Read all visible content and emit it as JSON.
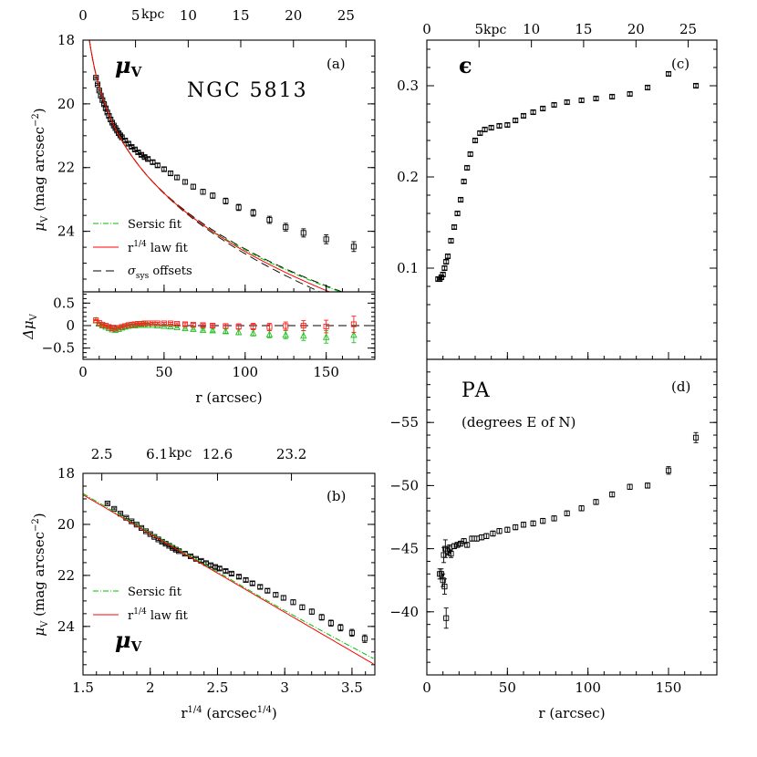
{
  "figure": {
    "object_name": "NGC 5813",
    "mu_symbol": "μ",
    "mu_sub": "V",
    "panel_a_letter": "(a)",
    "panel_b_letter": "(b)",
    "panel_c_letter": "(c)",
    "panel_d_letter": "(d)",
    "eps_symbol": "ϵ",
    "pa_title": "PA",
    "pa_subtitle": "(degrees E of N)",
    "kpc_unit": "kpc",
    "legend_sersic": "Sersic fit",
    "legend_r14": "r",
    "legend_r14_sup": "1/4",
    "legend_r14_tail": " law fit",
    "legend_sigma": "σ",
    "legend_sigma_sub": "sys",
    "legend_sigma_tail": " offsets",
    "ylabel_mu_a": "μ",
    "ylabel_mu_sub": "V",
    "ylabel_mu_units": "(mag arcsec",
    "ylabel_mu_exp": "−2",
    "ylabel_mu_close": ")",
    "ylabel_delta": "Δμ",
    "ylabel_delta_sub": "V",
    "xlabel_r": "r (arcsec)",
    "xlabel_r14": "r",
    "xlabel_r14_sup": "1/4",
    "xlabel_r14_units": " (arcsec",
    "xlabel_r14_units_sup": "1/4",
    "xlabel_r14_close": ")",
    "colors": {
      "data": "#000000",
      "sersic": "#00c000",
      "r14": "#ff0000",
      "sigma": "#000000",
      "residual_r14": "#ff2020",
      "residual_sersic": "#20c020"
    }
  },
  "chart_data": [
    {
      "id": "a",
      "type": "scatter",
      "xlim": [
        0,
        180
      ],
      "ylim": [
        25.9,
        18
      ],
      "x_ticks": [
        0,
        50,
        100,
        150
      ],
      "y_ticks": [
        18,
        20,
        22,
        24
      ],
      "top_axis_kpc_ticks": [
        "0",
        "5",
        "10",
        "15",
        "20",
        "25"
      ],
      "top_axis_kpc_x": [
        0,
        32.4,
        64.9,
        97.3,
        129.8,
        162.2
      ],
      "r": [
        8,
        9,
        10,
        11,
        12,
        13,
        14,
        15,
        16,
        17,
        18,
        19,
        20,
        21,
        22,
        23,
        24,
        26,
        28,
        30,
        32,
        34,
        36,
        38,
        40,
        43,
        46,
        50,
        54,
        58,
        63,
        68,
        74,
        80,
        88,
        96,
        105,
        115,
        125,
        136,
        150,
        167
      ],
      "mu": [
        19.18,
        19.39,
        19.58,
        19.74,
        19.88,
        20.01,
        20.14,
        20.27,
        20.38,
        20.49,
        20.59,
        20.68,
        20.76,
        20.84,
        20.92,
        20.99,
        21.05,
        21.15,
        21.25,
        21.35,
        21.43,
        21.52,
        21.6,
        21.67,
        21.73,
        21.83,
        21.93,
        22.05,
        22.18,
        22.31,
        22.45,
        22.6,
        22.76,
        22.88,
        23.05,
        23.25,
        23.42,
        23.64,
        23.87,
        24.05,
        24.25,
        24.48
      ],
      "models": [
        "Sersic fit",
        "r1/4 law fit",
        "σsys offsets"
      ]
    },
    {
      "id": "a-residual",
      "type": "scatter",
      "ylim": [
        -0.75,
        0.75
      ],
      "y_ticks": [
        "0.5",
        "0",
        "−0.5"
      ],
      "y_tick_values": [
        0.5,
        0,
        -0.5
      ],
      "r": [
        8,
        10,
        12,
        14,
        16,
        18,
        20,
        22,
        24,
        26,
        28,
        30,
        32,
        34,
        36,
        38,
        40,
        43,
        46,
        50,
        54,
        58,
        63,
        68,
        74,
        80,
        88,
        96,
        105,
        115,
        125,
        136,
        150,
        167
      ],
      "resid_r14": [
        0.12,
        0.06,
        0.02,
        0,
        -0.03,
        -0.06,
        -0.07,
        -0.05,
        -0.03,
        -0.01,
        0.01,
        0.02,
        0.03,
        0.04,
        0.04,
        0.05,
        0.05,
        0.05,
        0.05,
        0.05,
        0.05,
        0.04,
        0.03,
        0.02,
        0.01,
        0,
        -0.01,
        -0.02,
        -0.02,
        -0.03,
        -0.01,
        0,
        -0.02,
        0.03
      ],
      "resid_sersic": [
        0.12,
        0.05,
        0.01,
        -0.02,
        -0.05,
        -0.08,
        -0.09,
        -0.07,
        -0.04,
        -0.02,
        0,
        0.01,
        0.01,
        0.02,
        0.02,
        0.02,
        0.02,
        0.02,
        0.01,
        0,
        -0.01,
        -0.03,
        -0.05,
        -0.07,
        -0.09,
        -0.1,
        -0.12,
        -0.14,
        -0.16,
        -0.19,
        -0.2,
        -0.22,
        -0.25,
        -0.2
      ],
      "err": [
        0.01,
        0.01,
        0.01,
        0.01,
        0.01,
        0.01,
        0.01,
        0.01,
        0.01,
        0.01,
        0.01,
        0.01,
        0.01,
        0.01,
        0.01,
        0.01,
        0.01,
        0.02,
        0.02,
        0.02,
        0.02,
        0.02,
        0.03,
        0.03,
        0.03,
        0.04,
        0.05,
        0.06,
        0.07,
        0.08,
        0.09,
        0.11,
        0.14,
        0.18
      ]
    },
    {
      "id": "b",
      "type": "scatter",
      "xlim": [
        1.5,
        3.67
      ],
      "ylim": [
        25.9,
        18
      ],
      "x_ticks": [
        "1.5",
        "2",
        "2.5",
        "3",
        "3.5"
      ],
      "x_tick_values": [
        1.5,
        2,
        2.5,
        3,
        3.5
      ],
      "y_ticks": [
        18,
        20,
        22,
        24
      ],
      "top_axis_kpc_ticks": [
        "2.5",
        "6.1",
        "12.6",
        "23.2"
      ],
      "top_axis_kpc_x": [
        1.64,
        2.05,
        2.5,
        3.05
      ],
      "legend_models": [
        "Sersic fit",
        "r1/4 law fit"
      ]
    },
    {
      "id": "c",
      "type": "scatter",
      "xlim": [
        0,
        180
      ],
      "ylim": [
        0,
        0.35
      ],
      "x_ticks": [
        0,
        50,
        100,
        150
      ],
      "y_ticks": [
        "0.1",
        "0.2",
        "0.3"
      ],
      "y_tick_values": [
        0.1,
        0.2,
        0.3
      ],
      "top_axis_kpc_ticks": [
        "0",
        "5",
        "10",
        "15",
        "20",
        "25"
      ],
      "top_axis_kpc_x": [
        0,
        32.4,
        64.9,
        97.3,
        129.8,
        162.2
      ],
      "r": [
        7,
        8,
        9,
        10,
        11,
        12,
        13,
        15,
        17,
        19,
        21,
        23,
        25,
        27,
        30,
        33,
        36,
        40,
        45,
        50,
        55,
        60,
        66,
        72,
        79,
        87,
        96,
        105,
        115,
        126,
        137,
        150,
        167
      ],
      "eps": [
        0.088,
        0.088,
        0.09,
        0.093,
        0.1,
        0.107,
        0.113,
        0.13,
        0.145,
        0.16,
        0.175,
        0.195,
        0.21,
        0.225,
        0.24,
        0.248,
        0.252,
        0.254,
        0.256,
        0.257,
        0.262,
        0.267,
        0.271,
        0.275,
        0.279,
        0.282,
        0.284,
        0.286,
        0.288,
        0.291,
        0.298,
        0.313,
        0.3
      ],
      "err": [
        0.002,
        0.002,
        0.002,
        0.002,
        0.002,
        0.002,
        0.002,
        0.002,
        0.002,
        0.002,
        0.002,
        0.002,
        0.002,
        0.002,
        0.002,
        0.002,
        0.002,
        0.002,
        0.002,
        0.002,
        0.002,
        0.002,
        0.002,
        0.002,
        0.002,
        0.002,
        0.002,
        0.002,
        0.002,
        0.002,
        0.002,
        0.002,
        0.002
      ]
    },
    {
      "id": "d",
      "type": "scatter",
      "xlim": [
        0,
        180
      ],
      "ylim": [
        -35,
        -60
      ],
      "x_ticks": [
        0,
        50,
        100,
        150
      ],
      "y_ticks": [
        "−40",
        "−45",
        "−50",
        "−55"
      ],
      "y_tick_values": [
        -40,
        -45,
        -50,
        -55
      ],
      "r": [
        8,
        9,
        10,
        10.5,
        11,
        11.5,
        12,
        13,
        14,
        15,
        17,
        19,
        21,
        23,
        25,
        28,
        31,
        34,
        37,
        41,
        45,
        50,
        55,
        60,
        66,
        72,
        79,
        87,
        96,
        105,
        115,
        126,
        137,
        150,
        167
      ],
      "pa": [
        -43,
        -43,
        -42.5,
        -44.5,
        -42,
        -45,
        -39.5,
        -44.8,
        -45,
        -44.6,
        -45.2,
        -45.3,
        -45.4,
        -45.6,
        -45.3,
        -45.8,
        -45.8,
        -45.9,
        -46,
        -46.2,
        -46.4,
        -46.5,
        -46.7,
        -46.9,
        -47,
        -47.2,
        -47.4,
        -47.8,
        -48.2,
        -48.7,
        -49.3,
        -49.9,
        -50,
        -51.2,
        -53.8
      ],
      "err": [
        0.4,
        0.4,
        0.5,
        0.6,
        0.6,
        0.7,
        0.8,
        0.3,
        0.3,
        0.3,
        0.2,
        0.2,
        0.2,
        0.2,
        0.2,
        0.2,
        0.2,
        0.2,
        0.2,
        0.2,
        0.2,
        0.2,
        0.2,
        0.2,
        0.2,
        0.2,
        0.2,
        0.2,
        0.2,
        0.2,
        0.2,
        0.2,
        0.2,
        0.3,
        0.4
      ]
    }
  ]
}
